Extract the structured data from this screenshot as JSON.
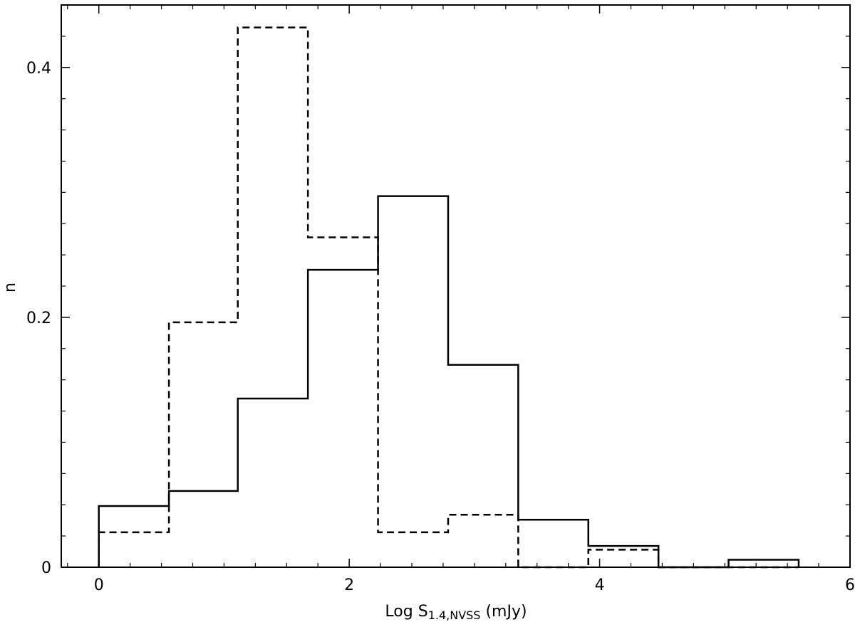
{
  "chart_data": {
    "type": "histogram",
    "xlabel": {
      "main": "Log S",
      "sub": "1.4,NVSS",
      "unit": " (mJy)"
    },
    "ylabel": "n",
    "xlim": [
      -0.3,
      6
    ],
    "ylim": [
      0,
      0.45
    ],
    "x_ticks": [
      0,
      2,
      4,
      6
    ],
    "x_tick_labels": [
      "0",
      "2",
      "4",
      "6"
    ],
    "y_ticks": [
      0,
      0.2,
      0.4
    ],
    "y_tick_labels": [
      "0",
      "0.2",
      "0.4"
    ],
    "bin_edges": [
      0,
      0.56,
      1.11,
      1.67,
      2.23,
      2.79,
      3.35,
      3.91,
      4.47,
      5.03,
      5.59
    ],
    "series": [
      {
        "style": "solid",
        "values": [
          0.049,
          0.061,
          0.135,
          0.238,
          0.297,
          0.162,
          0.038,
          0.017,
          0,
          0.006
        ]
      },
      {
        "style": "dashed",
        "values": [
          0.028,
          0.196,
          0.432,
          0.264,
          0.028,
          0.042,
          0,
          0.014,
          0,
          0
        ]
      }
    ],
    "grid": false
  }
}
